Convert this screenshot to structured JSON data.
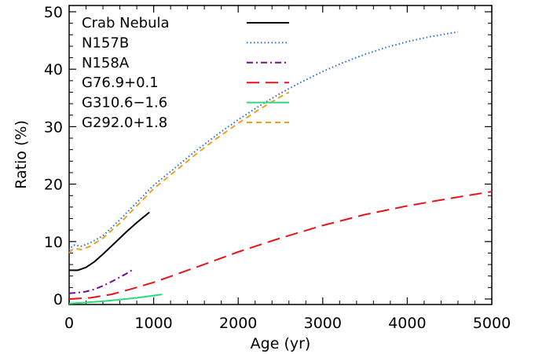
{
  "chart_data": {
    "type": "line",
    "title": "",
    "xlabel": "Age (yr)",
    "ylabel": "Ratio (%)",
    "xlim": [
      0,
      5000
    ],
    "ylim": [
      0,
      50
    ],
    "xticks": [
      "0",
      "1000",
      "2000",
      "3000",
      "4000",
      "5000"
    ],
    "yticks": [
      "0",
      "10",
      "20",
      "30",
      "40",
      "50"
    ],
    "grid": false,
    "legend_position": "top-left",
    "series": [
      {
        "name": "Crab Nebula",
        "color": "#000000",
        "dash": "solid",
        "x": [
          0,
          100,
          200,
          300,
          400,
          500,
          600,
          700,
          800,
          900,
          950
        ],
        "y": [
          5.0,
          5.0,
          5.5,
          6.5,
          7.8,
          9.2,
          10.6,
          12.0,
          13.3,
          14.5,
          15.1
        ]
      },
      {
        "name": "N157B",
        "color": "#1f6fe0",
        "dash": "dotted",
        "x": [
          0,
          50,
          150,
          250,
          400,
          600,
          800,
          1000,
          1250,
          1500,
          1750,
          2000,
          2250,
          2500,
          2750,
          3000,
          3250,
          3500,
          3750,
          4000,
          4250,
          4600
        ],
        "y": [
          8.5,
          9.4,
          9.2,
          9.8,
          11.0,
          13.8,
          16.8,
          19.8,
          22.8,
          25.8,
          28.6,
          31.2,
          33.6,
          35.8,
          37.8,
          39.6,
          41.2,
          42.6,
          43.8,
          44.8,
          45.6,
          46.5
        ]
      },
      {
        "name": "N158A",
        "color": "#6a0d91",
        "dash": "dashdot",
        "x": [
          0,
          100,
          200,
          300,
          400,
          500,
          600,
          700,
          760
        ],
        "y": [
          1.0,
          1.1,
          1.3,
          1.7,
          2.3,
          3.0,
          3.8,
          4.6,
          5.2
        ]
      },
      {
        "name": "G76.9+0.1",
        "color": "#e8131a",
        "dash": "longdash",
        "x": [
          0,
          250,
          500,
          750,
          1000,
          1500,
          2000,
          2500,
          3000,
          3500,
          4000,
          4500,
          5000
        ],
        "y": [
          0,
          0.2,
          0.8,
          1.8,
          2.9,
          5.5,
          8.2,
          10.6,
          12.8,
          14.7,
          16.2,
          17.5,
          18.7
        ]
      },
      {
        "name": "G310.6−1.6",
        "color": "#2bd97b",
        "dash": "solid",
        "x": [
          0,
          200,
          400,
          600,
          800,
          1000,
          1100
        ],
        "y": [
          -0.8,
          -0.6,
          -0.4,
          -0.1,
          0.2,
          0.6,
          0.8
        ]
      },
      {
        "name": "G292.0+1.8",
        "color": "#f0a020",
        "dash": "dashed",
        "x": [
          0,
          50,
          150,
          250,
          400,
          600,
          800,
          1000,
          1250,
          1500,
          1750,
          2000,
          2250,
          2500,
          2600
        ],
        "y": [
          8.0,
          8.8,
          8.6,
          9.2,
          10.6,
          13.2,
          16.2,
          19.2,
          22.2,
          25.2,
          28.0,
          30.6,
          33.0,
          35.2,
          36.0
        ]
      }
    ]
  }
}
